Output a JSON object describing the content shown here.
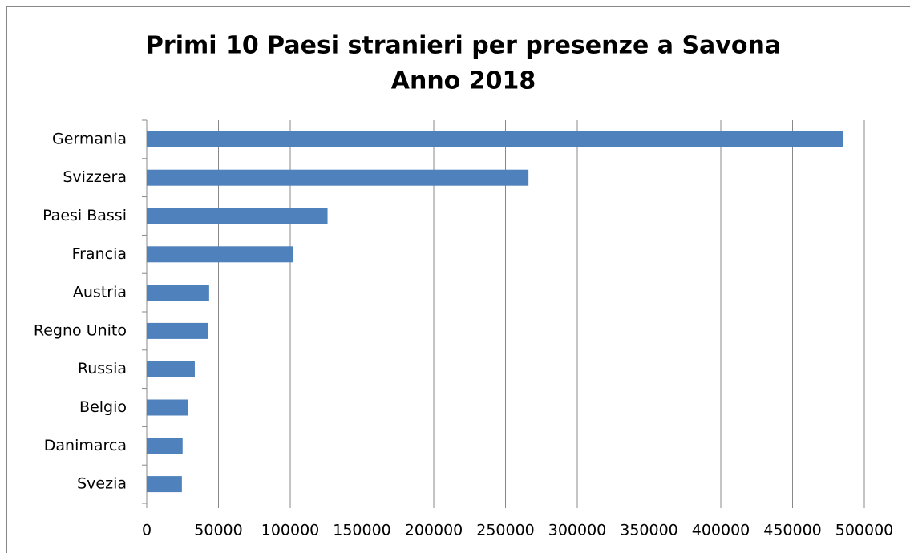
{
  "chart_data": {
    "type": "hbar",
    "title": "Primi 10 Paesi stranieri per presenze a Savona",
    "subtitle": "Anno 2018",
    "categories": [
      "Germania",
      "Svizzera",
      "Paesi Bassi",
      "Francia",
      "Austria",
      "Regno Unito",
      "Russia",
      "Belgio",
      "Danimarca",
      "Svezia"
    ],
    "values": [
      485000,
      266000,
      126000,
      102000,
      43500,
      42500,
      33500,
      28500,
      25000,
      24500
    ],
    "color": "#4f81bd",
    "xlim": [
      0,
      500000
    ],
    "xticks": [
      0,
      50000,
      100000,
      150000,
      200000,
      250000,
      300000,
      350000,
      400000,
      450000,
      500000
    ],
    "grid": true
  }
}
